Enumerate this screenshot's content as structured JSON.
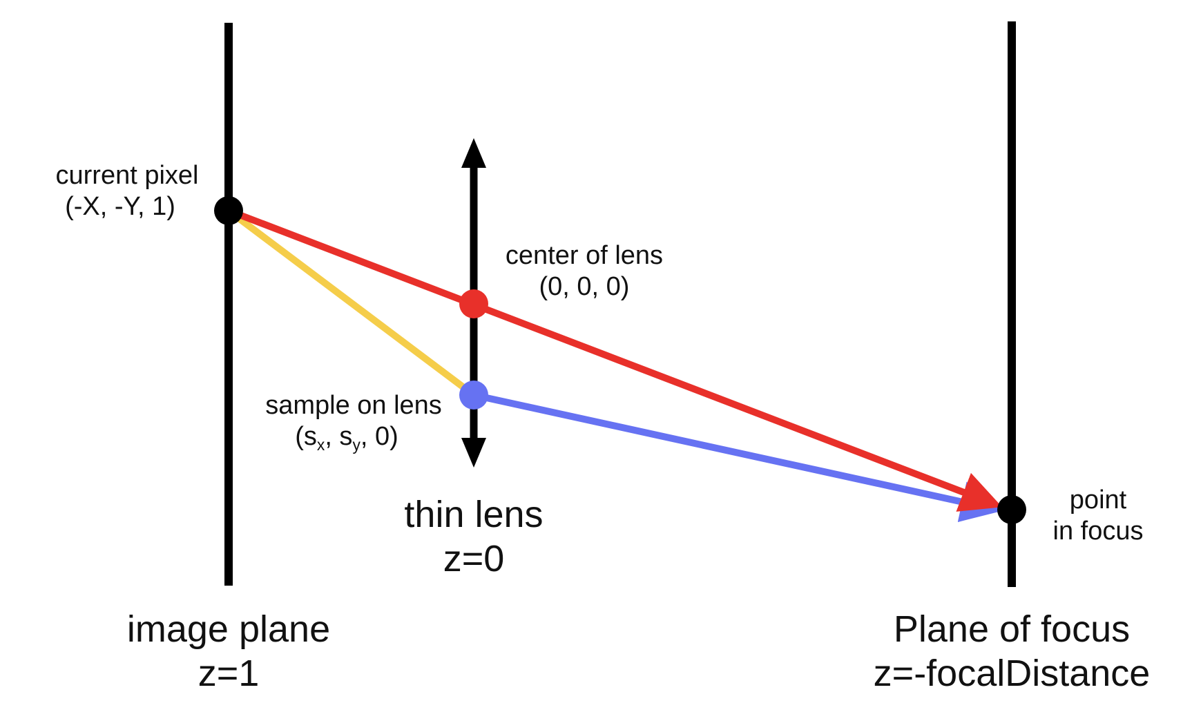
{
  "labels": {
    "current_pixel": {
      "line1": "current pixel",
      "line2": "(-X, -Y, 1)"
    },
    "center_of_lens": {
      "line1": "center of lens",
      "line2": "(0, 0, 0)"
    },
    "sample_on_lens": {
      "line1": "sample on lens",
      "line2_open": "(s",
      "sub_x": "x",
      "sep": ", s",
      "sub_y": "y",
      "line2_close": ", 0)"
    },
    "thin_lens": {
      "line1": "thin lens",
      "line2": "z=0"
    },
    "point_in_focus": {
      "line1": "point",
      "line2": "in focus"
    },
    "image_plane": {
      "line1": "image plane",
      "line2": "z=1"
    },
    "plane_of_focus": {
      "line1": "Plane of focus",
      "line2": "z=-focalDistance"
    }
  },
  "colors": {
    "ink": "#000000",
    "chief_ray": "#e8302a",
    "lens_ray_in": "#f5cd4a",
    "lens_ray_out": "#6672f2",
    "sample_point": "#6672f2",
    "center_point": "#e8302a"
  }
}
